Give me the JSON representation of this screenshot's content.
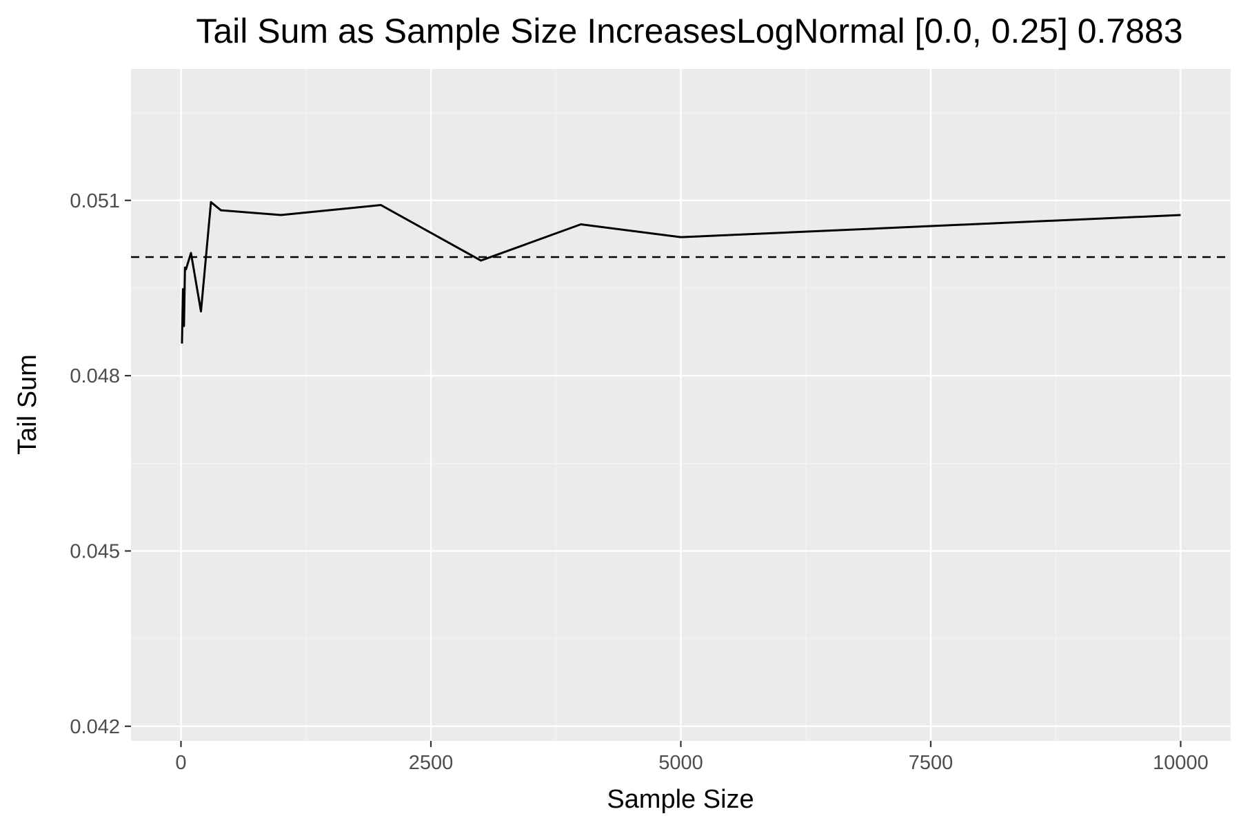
{
  "chart_data": {
    "type": "line",
    "title": "Tail Sum as Sample Size IncreasesLogNormal [0.0, 0.25] 0.7883",
    "xlabel": "Sample Size",
    "ylabel": "Tail Sum",
    "xlim": [
      -500,
      10500
    ],
    "ylim": [
      0.04175,
      0.05325
    ],
    "x_ticks": [
      0,
      2500,
      5000,
      7500,
      10000
    ],
    "x_tick_labels": [
      "0",
      "2500",
      "5000",
      "7500",
      "10000"
    ],
    "y_ticks": [
      0.042,
      0.045,
      0.048,
      0.051
    ],
    "y_tick_labels": [
      "0.042",
      "0.045",
      "0.048",
      "0.051"
    ],
    "grid": true,
    "reference_line": {
      "y": 0.05003,
      "style": "dashed",
      "color": "#000000"
    },
    "series": [
      {
        "color": "#000000",
        "x": [
          10,
          20,
          30,
          40,
          50,
          100,
          200,
          300,
          400,
          1000,
          2000,
          3000,
          4000,
          5000,
          10000
        ],
        "y": [
          0.04855,
          0.04948,
          0.04885,
          0.04985,
          0.04982,
          0.0501,
          0.0491,
          0.05097,
          0.05083,
          0.05075,
          0.05092,
          0.04997,
          0.05059,
          0.05037,
          0.05075
        ]
      }
    ]
  },
  "colors": {
    "panel_background": "#ebebeb",
    "grid_major": "#ffffff",
    "grid_minor": "#f4f4f4",
    "line": "#000000",
    "tick_label": "#4d4d4d"
  }
}
